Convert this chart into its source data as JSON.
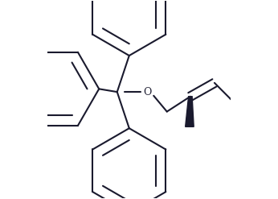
{
  "bg_color": "#ffffff",
  "line_color": "#1a1a2e",
  "bond_width": 1.5,
  "figsize": [
    3.46,
    2.47
  ],
  "dpi": 100
}
